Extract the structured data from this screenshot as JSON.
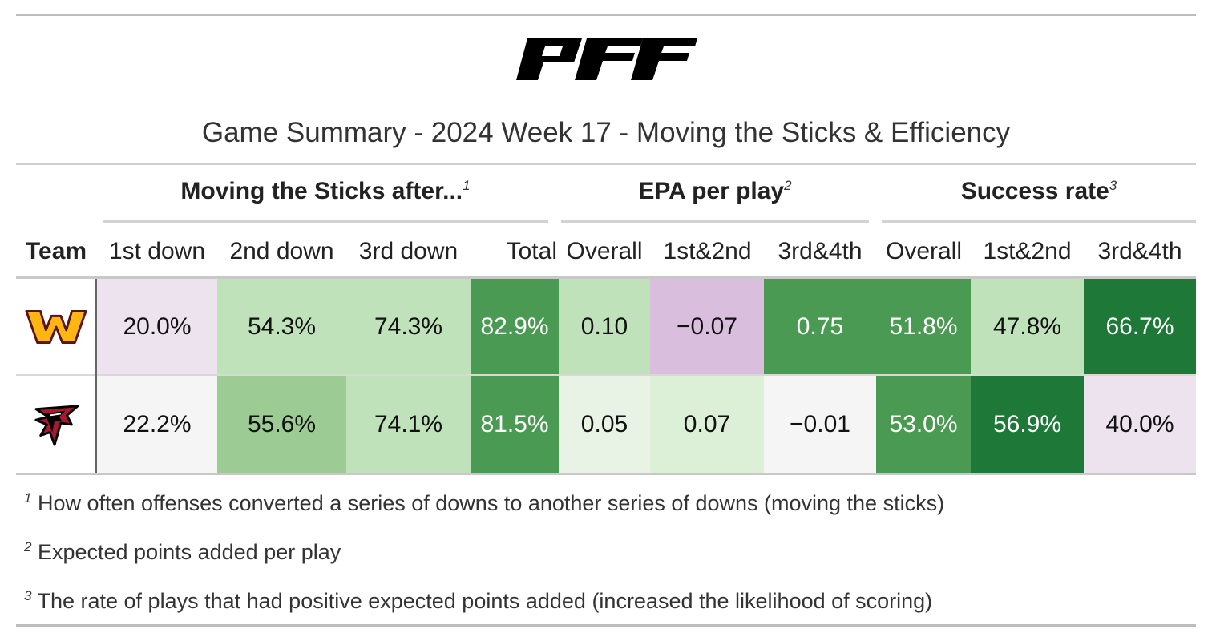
{
  "brand": "PFF",
  "title": "Game Summary - 2024 Week 17 - Moving the Sticks & Efficiency",
  "groups": [
    {
      "label": "Moving the Sticks after...",
      "note": "1"
    },
    {
      "label": "EPA per play",
      "note": "2"
    },
    {
      "label": "Success rate",
      "note": "3"
    }
  ],
  "columns": {
    "team": "Team",
    "sticks": [
      "1st down",
      "2nd down",
      "3rd down",
      "Total"
    ],
    "epa": [
      "Overall",
      "1st&2nd",
      "3rd&4th"
    ],
    "success": [
      "Overall",
      "1st&2nd",
      "3rd&4th"
    ]
  },
  "rows": [
    {
      "team_logo": "commanders-logo",
      "values": [
        "20.0%",
        "54.3%",
        "74.3%",
        "82.9%",
        "0.10",
        "−0.07",
        "0.75",
        "51.8%",
        "47.8%",
        "66.7%"
      ],
      "colors": [
        "#ede3ef",
        "#c0e2bb",
        "#c0e2bb",
        "#4b9a53",
        "#c0e2bb",
        "#d9bfdd",
        "#4b9a53",
        "#4b9a53",
        "#c0e2bb",
        "#1e7838"
      ],
      "text_light": [
        false,
        false,
        false,
        true,
        false,
        false,
        true,
        true,
        false,
        true
      ]
    },
    {
      "team_logo": "falcons-logo",
      "values": [
        "22.2%",
        "55.6%",
        "74.1%",
        "81.5%",
        "0.05",
        "0.07",
        "−0.01",
        "53.0%",
        "56.9%",
        "40.0%"
      ],
      "colors": [
        "#f5f5f5",
        "#9ccc94",
        "#c0e2bb",
        "#4b9a53",
        "#e8f3e5",
        "#dcf0d8",
        "#f5f5f5",
        "#4b9a53",
        "#1e7838",
        "#ede3ef"
      ],
      "text_light": [
        false,
        false,
        false,
        true,
        false,
        false,
        false,
        true,
        true,
        false
      ]
    }
  ],
  "footnotes": [
    {
      "mark": "1",
      "text": "How often offenses converted a series of downs to another series of downs (moving the sticks)"
    },
    {
      "mark": "2",
      "text": "Expected points added per play"
    },
    {
      "mark": "3",
      "text": "The rate of plays that had positive expected points added (increased the likelihood of scoring)"
    }
  ]
}
